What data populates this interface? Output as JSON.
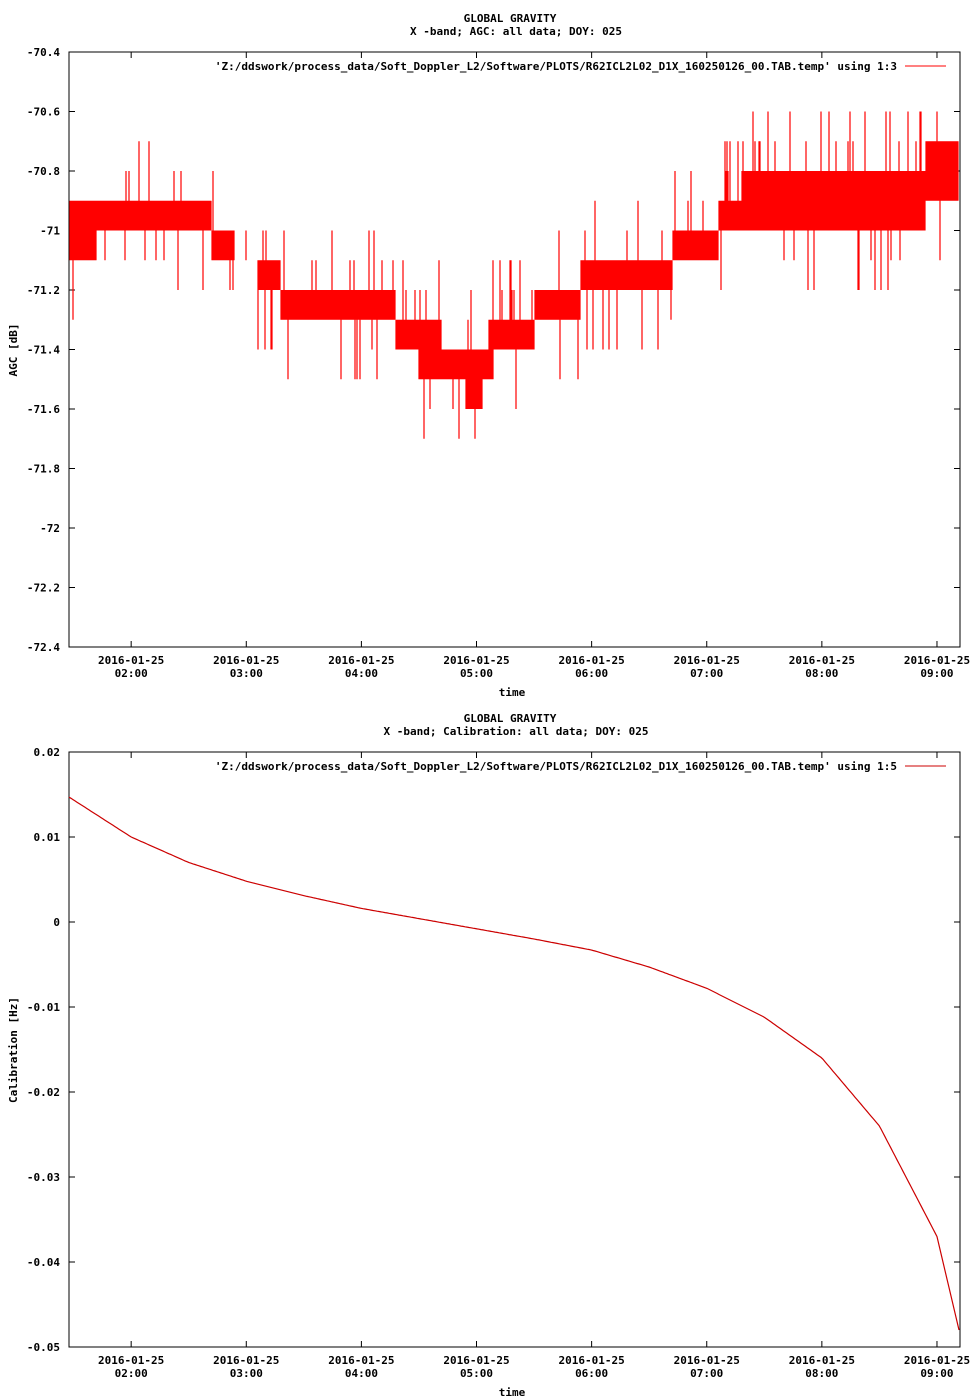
{
  "chart_data": [
    {
      "type": "line",
      "title": "GLOBAL GRAVITY",
      "subtitle": "X -band; AGC: all data; DOY: 025",
      "xlabel": "time",
      "ylabel": "AGC [dB]",
      "ylim": [
        -72.4,
        -70.4
      ],
      "yticks": [
        "-70.4",
        "-70.6",
        "-70.8",
        "-71",
        "-71.2",
        "-71.4",
        "-71.6",
        "-71.8",
        "-72",
        "-72.2",
        "-72.4"
      ],
      "xlim_hours": [
        1.46,
        9.2
      ],
      "xtick_dates": [
        "2016-01-25",
        "2016-01-25",
        "2016-01-25",
        "2016-01-25",
        "2016-01-25",
        "2016-01-25",
        "2016-01-25",
        "2016-01-25"
      ],
      "xtick_times": [
        "02:00",
        "03:00",
        "04:00",
        "05:00",
        "06:00",
        "07:00",
        "08:00",
        "09:00"
      ],
      "legend_position": "top-right",
      "series": [
        {
          "name": "'Z:/ddswork/process_data/Soft_Doppler_L2/Software/PLOTS/R62ICL2L02_D1X_160250126_00.TAB.temp' using 1:3",
          "color": "#ff0000",
          "style": "noisy band",
          "x_hours": [
            1.46,
            1.6,
            1.8,
            2.0,
            2.2,
            2.4,
            2.6,
            2.8,
            3.0,
            3.2,
            3.4,
            3.6,
            3.8,
            4.0,
            4.2,
            4.4,
            4.6,
            4.8,
            5.0,
            5.2,
            5.4,
            5.6,
            5.8,
            6.0,
            6.2,
            6.4,
            6.6,
            6.8,
            7.0,
            7.2,
            7.4,
            7.6,
            7.8,
            8.0,
            8.2,
            8.4,
            8.6,
            8.8,
            9.0,
            9.2
          ],
          "low": [
            -71.1,
            -71.1,
            -71.0,
            -71.0,
            -71.0,
            -71.0,
            -71.0,
            -71.1,
            -71.1,
            -71.2,
            -71.3,
            -71.3,
            -71.3,
            -71.3,
            -71.3,
            -71.4,
            -71.5,
            -71.5,
            -71.6,
            -71.4,
            -71.4,
            -71.3,
            -71.3,
            -71.2,
            -71.2,
            -71.2,
            -71.2,
            -71.1,
            -71.1,
            -71.0,
            -71.0,
            -71.0,
            -71.0,
            -71.0,
            -71.0,
            -71.0,
            -71.0,
            -71.0,
            -70.9,
            -70.9
          ],
          "high": [
            -70.9,
            -70.9,
            -70.9,
            -70.9,
            -70.9,
            -70.9,
            -70.9,
            -71.0,
            -71.1,
            -71.1,
            -71.2,
            -71.2,
            -71.2,
            -71.2,
            -71.2,
            -71.3,
            -71.3,
            -71.4,
            -71.4,
            -71.3,
            -71.3,
            -71.2,
            -71.2,
            -71.1,
            -71.1,
            -71.1,
            -71.1,
            -71.0,
            -71.0,
            -70.9,
            -70.8,
            -70.8,
            -70.8,
            -70.8,
            -70.8,
            -70.8,
            -70.8,
            -70.8,
            -70.7,
            -70.7
          ]
        }
      ]
    },
    {
      "type": "line",
      "title": "GLOBAL GRAVITY",
      "subtitle": "X -band; Calibration: all data; DOY: 025",
      "xlabel": "time",
      "ylabel": "Calibration [Hz]",
      "ylim": [
        -0.05,
        0.02
      ],
      "yticks": [
        "0.02",
        "0.01",
        "0",
        "-0.01",
        "-0.02",
        "-0.03",
        "-0.04",
        "-0.05"
      ],
      "xlim_hours": [
        1.46,
        9.2
      ],
      "xtick_dates": [
        "2016-01-25",
        "2016-01-25",
        "2016-01-25",
        "2016-01-25",
        "2016-01-25",
        "2016-01-25",
        "2016-01-25",
        "2016-01-25"
      ],
      "xtick_times": [
        "02:00",
        "03:00",
        "04:00",
        "05:00",
        "06:00",
        "07:00",
        "08:00",
        "09:00"
      ],
      "legend_position": "top-right",
      "series": [
        {
          "name": "'Z:/ddswork/process_data/Soft_Doppler_L2/Software/PLOTS/R62ICL2L02_D1X_160250126_00.TAB.temp' using 1:5",
          "color": "#cc0000",
          "x_hours": [
            1.46,
            2.0,
            2.5,
            3.0,
            3.5,
            4.0,
            4.5,
            5.0,
            5.5,
            6.0,
            6.5,
            7.0,
            7.5,
            8.0,
            8.5,
            9.0,
            9.2
          ],
          "y": [
            0.0147,
            0.01,
            0.007,
            0.0048,
            0.0031,
            0.0016,
            0.0004,
            -0.0008,
            -0.002,
            -0.0033,
            -0.0053,
            -0.0078,
            -0.0112,
            -0.016,
            -0.024,
            -0.037,
            -0.0485
          ]
        }
      ]
    }
  ]
}
